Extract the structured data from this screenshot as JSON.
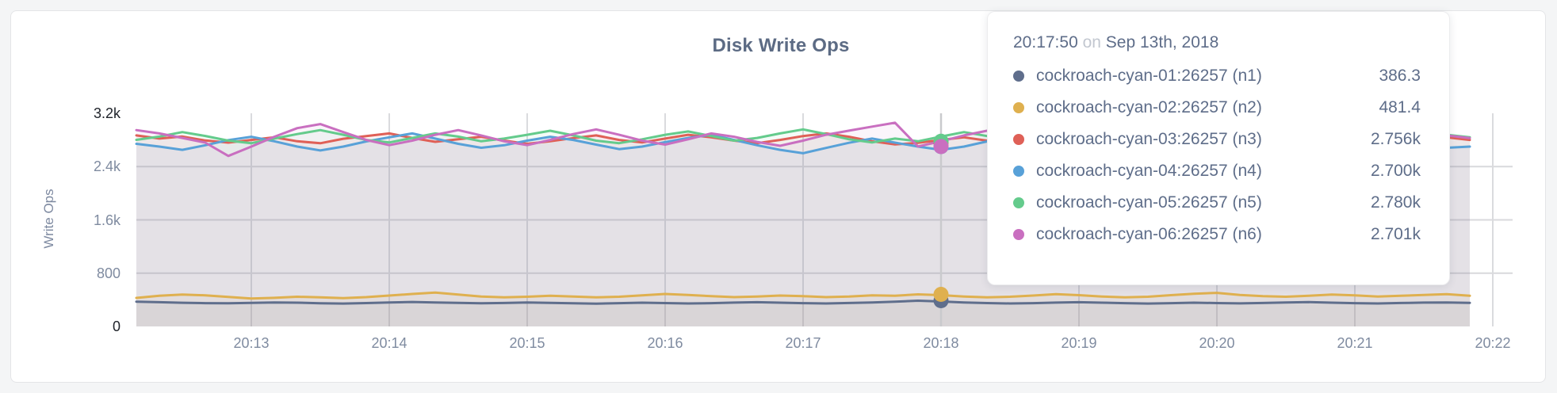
{
  "panel": {
    "background": "#ffffff"
  },
  "chart_data": {
    "type": "line",
    "title": "Disk Write Ops",
    "ylabel": "Write Ops",
    "ylim": [
      0,
      3200
    ],
    "grid": true,
    "legend_position": "tooltip",
    "y_ticks": [
      {
        "value": 0,
        "label": "0",
        "emph": true
      },
      {
        "value": 800,
        "label": "800",
        "emph": false
      },
      {
        "value": 1600,
        "label": "1.6k",
        "emph": false
      },
      {
        "value": 2400,
        "label": "2.4k",
        "emph": false
      },
      {
        "value": 3200,
        "label": "3.2k",
        "emph": true
      }
    ],
    "x_axis": {
      "tick_labels": [
        "20:13",
        "20:14",
        "20:15",
        "20:16",
        "20:17",
        "20:18",
        "20:19",
        "20:20",
        "20:21",
        "20:22"
      ],
      "tick_interval_seconds": 60,
      "sample_interval_seconds": 10
    },
    "series": [
      {
        "name": "cockroach-cyan-01:26257 (n1)",
        "color": "#5f6e8c",
        "hover_value": 386.3,
        "hover_value_label": "386.3",
        "values": [
          372,
          364,
          356,
          350,
          347,
          354,
          361,
          357,
          349,
          344,
          351,
          359,
          367,
          361,
          354,
          348,
          352,
          360,
          354,
          347,
          342,
          350,
          357,
          351,
          345,
          350,
          358,
          364,
          357,
          350,
          345,
          352,
          361,
          371,
          386.3,
          375,
          361,
          351,
          345,
          350,
          358,
          364,
          357,
          350,
          344,
          350,
          357,
          351,
          346,
          352,
          359,
          365,
          357,
          350,
          345,
          352,
          358,
          361,
          355
        ]
      },
      {
        "name": "cockroach-cyan-02:26257 (n2)",
        "color": "#dfb04f",
        "hover_value": 481.4,
        "hover_value_label": "481.4",
        "values": [
          428,
          462,
          478,
          468,
          444,
          420,
          430,
          446,
          436,
          425,
          440,
          464,
          488,
          508,
          478,
          450,
          436,
          446,
          460,
          450,
          436,
          446,
          468,
          488,
          474,
          455,
          440,
          450,
          464,
          455,
          440,
          450,
          468,
          460,
          481.4,
          470,
          450,
          436,
          446,
          464,
          484,
          470,
          450,
          436,
          446,
          470,
          490,
          504,
          474,
          455,
          446,
          460,
          478,
          468,
          450,
          460,
          474,
          484,
          460
        ]
      },
      {
        "name": "cockroach-cyan-03:26257 (n3)",
        "color": "#df6057",
        "hover_value": 2756,
        "hover_value_label": "2.756k",
        "values": [
          2868,
          2820,
          2852,
          2792,
          2760,
          2800,
          2840,
          2780,
          2750,
          2818,
          2858,
          2898,
          2830,
          2772,
          2810,
          2848,
          2790,
          2742,
          2780,
          2828,
          2868,
          2800,
          2762,
          2820,
          2878,
          2840,
          2790,
          2752,
          2800,
          2858,
          2898,
          2848,
          2780,
          2732,
          2756,
          2800,
          2840,
          2790,
          2752,
          2810,
          2868,
          2820,
          2762,
          2800,
          2848,
          2790,
          2742,
          2780,
          2830,
          2878,
          2820,
          2772,
          2810,
          2858,
          2800,
          2752,
          2790,
          2838,
          2800
        ]
      },
      {
        "name": "cockroach-cyan-04:26257 (n4)",
        "color": "#58a1d8",
        "hover_value": 2700,
        "hover_value_label": "2.700k",
        "values": [
          2742,
          2700,
          2652,
          2720,
          2798,
          2848,
          2780,
          2700,
          2642,
          2700,
          2778,
          2840,
          2898,
          2820,
          2742,
          2682,
          2720,
          2790,
          2848,
          2800,
          2730,
          2662,
          2700,
          2768,
          2830,
          2878,
          2800,
          2720,
          2652,
          2600,
          2680,
          2758,
          2820,
          2760,
          2700,
          2652,
          2700,
          2778,
          2840,
          2780,
          2700,
          2632,
          2690,
          2758,
          2830,
          2770,
          2700,
          2642,
          2700,
          2778,
          2848,
          2790,
          2710,
          2652,
          2700,
          2768,
          2720,
          2682,
          2700
        ]
      },
      {
        "name": "cockroach-cyan-05:26257 (n5)",
        "color": "#64cb8c",
        "hover_value": 2780,
        "hover_value_label": "2.780k",
        "values": [
          2802,
          2850,
          2918,
          2860,
          2790,
          2752,
          2820,
          2888,
          2948,
          2878,
          2800,
          2762,
          2830,
          2898,
          2850,
          2780,
          2820,
          2878,
          2938,
          2868,
          2790,
          2752,
          2810,
          2878,
          2928,
          2858,
          2790,
          2830,
          2898,
          2958,
          2888,
          2810,
          2762,
          2820,
          2780,
          2850,
          2918,
          2858,
          2800,
          2762,
          2830,
          2898,
          2938,
          2868,
          2790,
          2752,
          2810,
          2878,
          2918,
          2850,
          2780,
          2820,
          2888,
          2928,
          2858,
          2790,
          2830,
          2878,
          2840
        ]
      },
      {
        "name": "cockroach-cyan-06:26257 (n6)",
        "color": "#c96fc0",
        "hover_value": 2701,
        "hover_value_label": "2.701k",
        "values": [
          2948,
          2898,
          2830,
          2760,
          2560,
          2700,
          2848,
          2978,
          3038,
          2918,
          2800,
          2722,
          2790,
          2878,
          2948,
          2868,
          2780,
          2722,
          2800,
          2888,
          2958,
          2878,
          2790,
          2730,
          2810,
          2898,
          2848,
          2770,
          2712,
          2790,
          2878,
          2940,
          3000,
          3058,
          2701,
          2780,
          2868,
          2938,
          2858,
          2770,
          2722,
          2800,
          2878,
          2948,
          2868,
          2780,
          2730,
          2810,
          2888,
          2840,
          2760,
          2800,
          2868,
          2928,
          2848,
          2770,
          2820,
          2868,
          2828
        ]
      }
    ],
    "hover": {
      "index": 34,
      "time": "20:17:50",
      "on_word": "on",
      "date_label": "Sep 13th, 2018"
    }
  }
}
